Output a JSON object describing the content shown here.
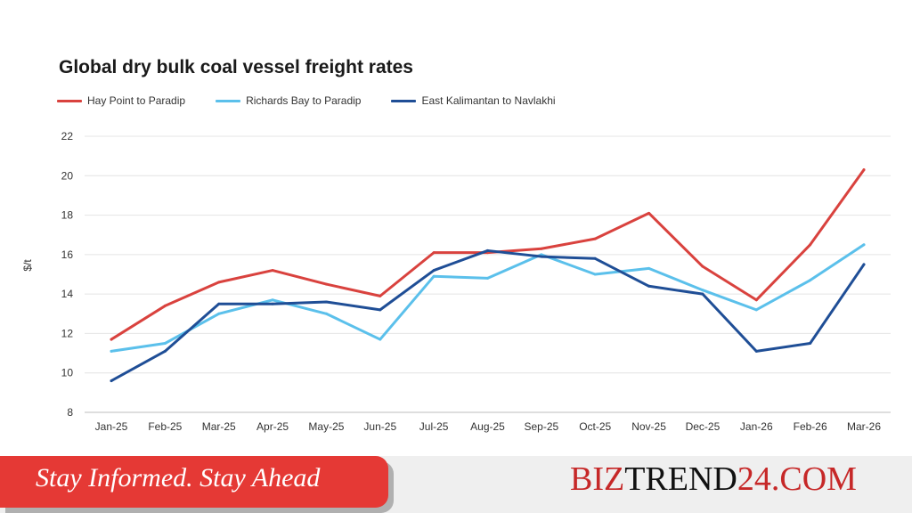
{
  "chart_data": {
    "type": "line",
    "title": "Global dry bulk coal vessel freight rates",
    "ylabel": "$/t",
    "xlabel": "",
    "ylim": [
      8,
      22
    ],
    "yticks": [
      8,
      10,
      12,
      14,
      16,
      18,
      20,
      22
    ],
    "grid": true,
    "legend_position": "top-left",
    "categories": [
      "Jan-25",
      "Feb-25",
      "Mar-25",
      "Apr-25",
      "May-25",
      "Jun-25",
      "Jul-25",
      "Aug-25",
      "Sep-25",
      "Oct-25",
      "Nov-25",
      "Dec-25",
      "Jan-26",
      "Feb-26",
      "Mar-26"
    ],
    "series": [
      {
        "name": "Hay Point to Paradip",
        "color": "#d9423e",
        "values": [
          11.7,
          13.4,
          14.6,
          15.2,
          14.5,
          13.9,
          16.1,
          16.1,
          16.3,
          16.8,
          18.1,
          15.4,
          13.7,
          16.5,
          20.3
        ]
      },
      {
        "name": "Richards Bay to Paradip",
        "color": "#5bc0eb",
        "values": [
          11.1,
          11.5,
          13.0,
          13.7,
          13.0,
          11.7,
          14.9,
          14.8,
          16.0,
          15.0,
          15.3,
          14.2,
          13.2,
          14.7,
          16.5
        ]
      },
      {
        "name": "East Kalimantan to Navlakhi",
        "color": "#1f4e96",
        "values": [
          9.6,
          11.1,
          13.5,
          13.5,
          13.6,
          13.2,
          15.2,
          16.2,
          15.9,
          15.8,
          14.4,
          14.0,
          11.1,
          11.5,
          15.5
        ]
      }
    ]
  },
  "footer": {
    "tagline": "Stay Informed. Stay Ahead",
    "brand_red_1": "BIZ",
    "brand_dark": "TREND",
    "brand_red_2": "24.COM",
    "tagline_bg": "#e53935",
    "brand_color": "#c62828"
  }
}
